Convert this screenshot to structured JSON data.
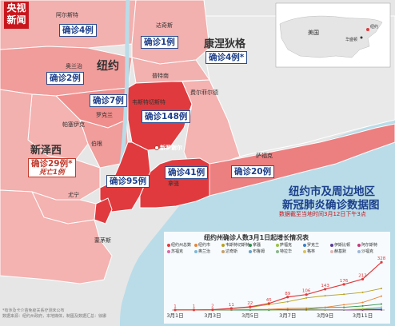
{
  "logo": {
    "line1": "央视",
    "line2": "新闻"
  },
  "title": {
    "line1": "纽约市及周边地区",
    "line2": "新冠肺炎确诊数据图",
    "note": "数据截至当地时间3月12日下午3点"
  },
  "regions": {
    "nyc": "纽约",
    "connecticut": "康涅狄格",
    "new_jersey": "新泽西",
    "inset_country": "美国",
    "inset_city": "纽约",
    "inset_capital": "华盛顿"
  },
  "places": [
    "阿尔斯特",
    "达奇斯",
    "奥兰治",
    "普特南",
    "罗克兰",
    "韦斯特切斯特",
    "费尔菲尔德",
    "帕塞伊克",
    "伯根",
    "新罗谢尔",
    "拿骚",
    "萨福克",
    "尤宁",
    "蒙茅斯"
  ],
  "counts": {
    "ulster": "确诊4例",
    "dutchess": "确诊1例",
    "connecticut": "确诊4例*",
    "orange": "确诊2例",
    "rockland": "确诊7例",
    "westchester": "确诊148例",
    "new_jersey_line1": "确诊29例*",
    "new_jersey_line2": "死亡1例",
    "nassau": "确诊41例",
    "suffolk": "确诊20例",
    "nyc": "确诊95例"
  },
  "footnote": {
    "line1": "*有涉及卡介苗免疫关系疗测未公布",
    "line2": "数据来源：纽约州政府，本地媒体，制图及数据汇总：徐娜"
  },
  "colors": {
    "dark_red": "#e03a3e",
    "mid_red": "#ec7f80",
    "light_red": "#f4b2b0",
    "land": "#e8e8e8",
    "water": "#b9dce8"
  },
  "chart_data": {
    "type": "line",
    "title": "纽约州确诊人数3月1日起增长情况表",
    "categories": [
      "3月1日",
      "3月3日",
      "3月5日",
      "3月7日",
      "3月9日",
      "3月11日"
    ],
    "x": [
      "3月1日",
      "3月2日",
      "3月3日",
      "3月4日",
      "3月5日",
      "3月6日",
      "3月7日",
      "3月8日",
      "3月9日",
      "3月10日",
      "3月11日",
      "3月12日"
    ],
    "ylim": [
      0,
      340
    ],
    "series": [
      {
        "name": "纽约州总数",
        "color": "#e03a3e",
        "values": [
          1,
          1,
          2,
          11,
          22,
          45,
          89,
          106,
          143,
          176,
          212,
          328
        ],
        "labels": [
          "1",
          "1",
          "2",
          "11",
          "22",
          "45",
          "89",
          "106",
          "143",
          "176",
          "212",
          "328"
        ]
      },
      {
        "name": "纽约市",
        "color": "#e8863a",
        "values": [
          1,
          1,
          1,
          2,
          4,
          5,
          11,
          13,
          19,
          36,
          52,
          95
        ]
      },
      {
        "name": "韦斯特切斯特",
        "color": "#b8a020",
        "values": [
          0,
          0,
          1,
          9,
          18,
          38,
          57,
          83,
          98,
          108,
          121,
          148
        ]
      },
      {
        "name": "拿骚",
        "color": "#2f8f4f",
        "values": [
          0,
          0,
          0,
          0,
          0,
          1,
          4,
          5,
          17,
          19,
          28,
          41
        ]
      },
      {
        "name": "萨福克",
        "color": "#9ac53a",
        "values": [
          0,
          0,
          0,
          0,
          0,
          0,
          1,
          1,
          1,
          2,
          8,
          20
        ]
      },
      {
        "name": "罗克兰",
        "color": "#3a7fc5",
        "values": [
          0,
          0,
          0,
          0,
          0,
          0,
          2,
          2,
          2,
          2,
          5,
          7
        ]
      },
      {
        "name": "伊斯比顿",
        "color": "#5a3a9a",
        "values": [
          0,
          0,
          0,
          0,
          0,
          0,
          0,
          0,
          1,
          1,
          2,
          3
        ]
      },
      {
        "name": "阿尔斯特",
        "color": "#c0397a",
        "values": [
          0,
          0,
          0,
          0,
          0,
          0,
          0,
          0,
          0,
          1,
          1,
          4
        ]
      },
      {
        "name": "苏福克",
        "color": "#d96aa8",
        "values": [
          0,
          0,
          0,
          0,
          0,
          0,
          0,
          0,
          0,
          1,
          1,
          1
        ]
      },
      {
        "name": "奥兰治",
        "color": "#7fb8d8",
        "values": [
          0,
          0,
          0,
          0,
          0,
          0,
          0,
          0,
          0,
          0,
          1,
          2
        ]
      },
      {
        "name": "达奇斯",
        "color": "#c4a06a",
        "values": [
          0,
          0,
          0,
          0,
          0,
          0,
          0,
          0,
          0,
          0,
          0,
          1
        ]
      },
      {
        "name": "布鲁姆",
        "color": "#6aa0c8",
        "values": [
          0,
          0,
          0,
          0,
          0,
          0,
          0,
          0,
          0,
          0,
          0,
          0
        ]
      },
      {
        "name": "特拉华",
        "color": "#8ab88a",
        "values": [
          0,
          0,
          0,
          0,
          0,
          0,
          0,
          0,
          0,
          0,
          0,
          0
        ]
      },
      {
        "name": "格林",
        "color": "#d6c26a",
        "values": [
          0,
          0,
          0,
          0,
          0,
          0,
          0,
          0,
          0,
          0,
          0,
          0
        ]
      },
      {
        "name": "赫基默",
        "color": "#e0b6b6",
        "values": [
          0,
          0,
          0,
          0,
          0,
          0,
          0,
          0,
          0,
          0,
          0,
          0
        ]
      },
      {
        "name": "沙福克",
        "color": "#9db6d8",
        "values": [
          0,
          0,
          0,
          0,
          0,
          0,
          0,
          0,
          0,
          0,
          0,
          0
        ]
      }
    ]
  }
}
